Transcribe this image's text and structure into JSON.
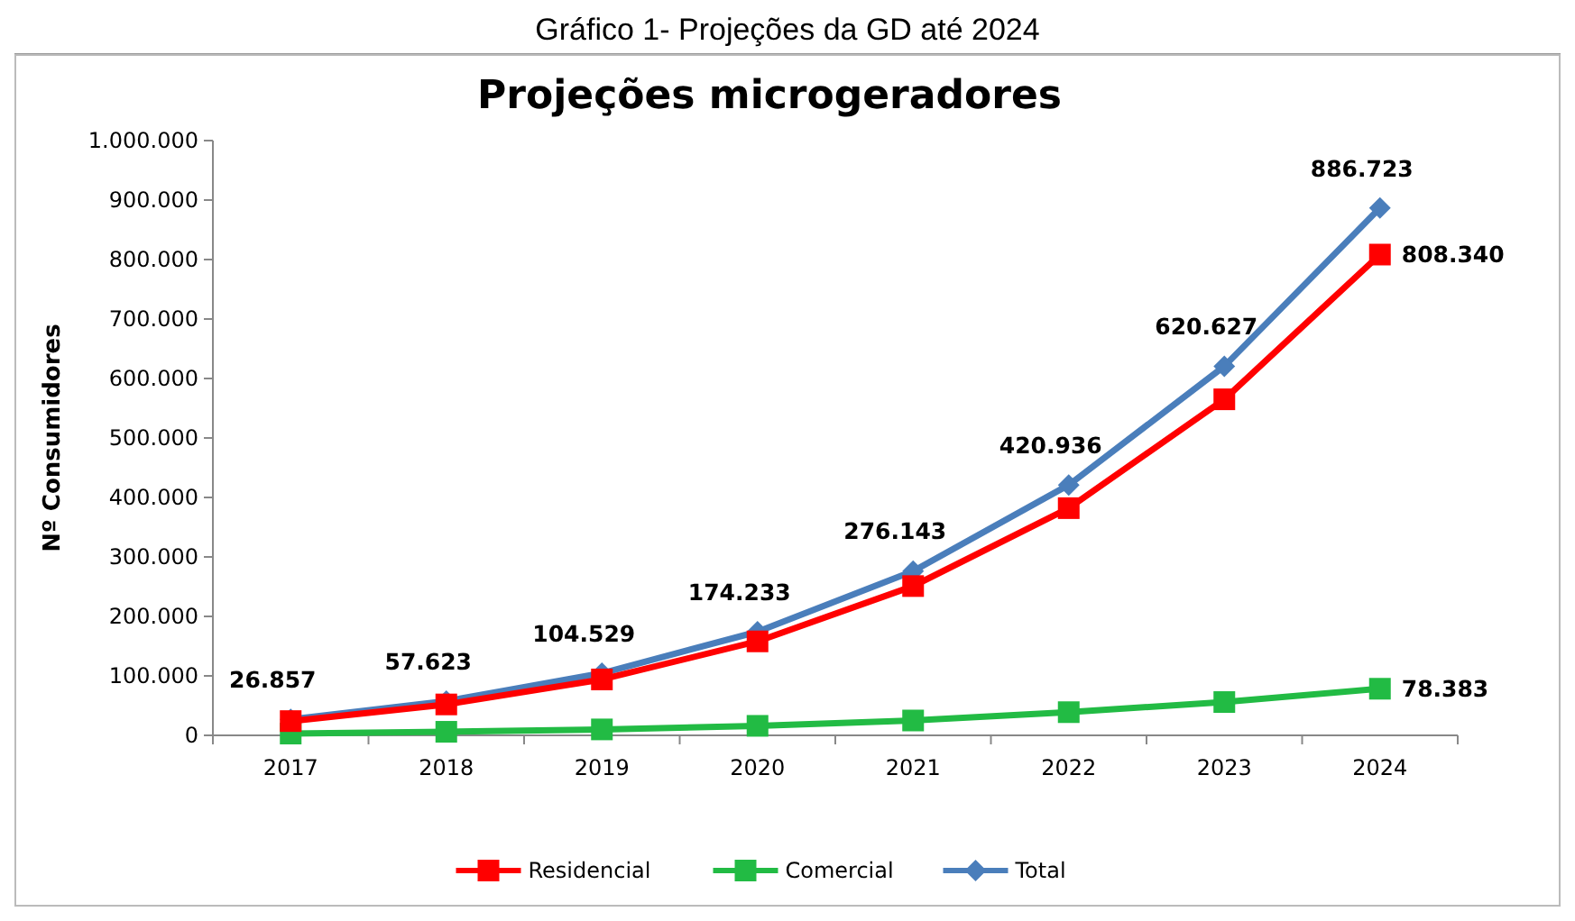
{
  "chart_data": {
    "type": "line",
    "title": "Projeções microgeradores",
    "ylabel": "Nº Consumidores",
    "annotations": [
      "Gráfico 1- Projeções da GD até 2024"
    ],
    "categories": [
      "2017",
      "2018",
      "2019",
      "2020",
      "2021",
      "2022",
      "2023",
      "2024"
    ],
    "series": [
      {
        "name": "Residencial",
        "color": "#ff0000",
        "marker": "square",
        "values": [
          24000,
          52000,
          94000,
          158000,
          251000,
          382000,
          565000,
          808340
        ],
        "value_labels": [
          null,
          null,
          null,
          null,
          null,
          null,
          null,
          "808.340"
        ]
      },
      {
        "name": "Comercial",
        "color": "#22bb44",
        "marker": "square",
        "values": [
          3000,
          6000,
          10000,
          16000,
          25000,
          39000,
          56000,
          78383
        ],
        "value_labels": [
          null,
          null,
          null,
          null,
          null,
          null,
          null,
          "78.383"
        ]
      },
      {
        "name": "Total",
        "color": "#4a7ebb",
        "marker": "diamond",
        "values": [
          26857,
          57623,
          104529,
          174233,
          276143,
          420936,
          620627,
          886723
        ],
        "value_labels": [
          "26.857",
          "57.623",
          "104.529",
          "174.233",
          "276.143",
          "420.936",
          "620.627",
          "886.723"
        ]
      }
    ],
    "ylim": [
      0,
      1000000
    ],
    "yticks": [
      {
        "value": 0,
        "label": "0"
      },
      {
        "value": 100000,
        "label": "100.000"
      },
      {
        "value": 200000,
        "label": "200.000"
      },
      {
        "value": 300000,
        "label": "300.000"
      },
      {
        "value": 400000,
        "label": "400.000"
      },
      {
        "value": 500000,
        "label": "500.000"
      },
      {
        "value": 600000,
        "label": "600.000"
      },
      {
        "value": 700000,
        "label": "700.000"
      },
      {
        "value": 800000,
        "label": "800.000"
      },
      {
        "value": 900000,
        "label": "900.000"
      },
      {
        "value": 1000000,
        "label": "1.000.000"
      }
    ],
    "grid": false,
    "legend": "bottom",
    "line_style": "solid"
  }
}
